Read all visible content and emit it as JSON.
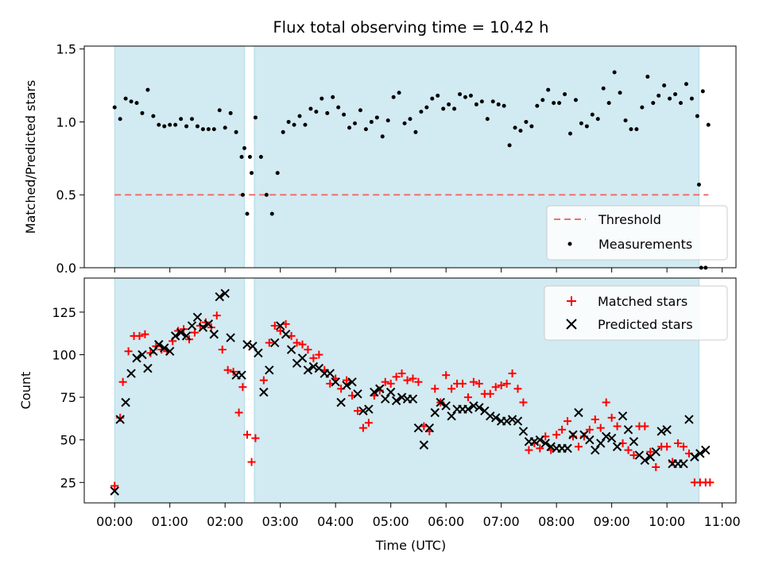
{
  "title": "Flux total observing time = 10.42 h",
  "colors": {
    "span": "#add8e6",
    "threshold": "#ef6f6f",
    "measurement": "#000000",
    "matched": "#ff0000",
    "predicted": "#000000"
  },
  "chart_data": [
    {
      "type": "scatter",
      "ylabel": "Matched/Predicted stars",
      "xlim": [
        -0.55,
        11.25
      ],
      "ylim": [
        0,
        1.52
      ],
      "yticks": [
        0.0,
        0.5,
        1.0,
        1.5
      ],
      "ytick_labels": [
        "0.0",
        "0.5",
        "1.0",
        "1.5"
      ],
      "shaded_ranges": [
        [
          0.0,
          2.35
        ],
        [
          2.53,
          10.58
        ]
      ],
      "threshold": {
        "name": "Threshold",
        "value": 0.5,
        "x_range": [
          0.0,
          10.75
        ]
      },
      "legend": {
        "placement": "lower right",
        "entries": [
          "Threshold",
          "Measurements"
        ]
      },
      "series": [
        {
          "name": "Measurements",
          "x": [
            0.0,
            0.1,
            0.2,
            0.3,
            0.4,
            0.5,
            0.6,
            0.7,
            0.8,
            0.9,
            1.0,
            1.1,
            1.2,
            1.3,
            1.4,
            1.5,
            1.6,
            1.7,
            1.8,
            1.9,
            2.0,
            2.1,
            2.2,
            2.3,
            2.35,
            2.45,
            2.55,
            2.65,
            2.75,
            2.85,
            2.95,
            3.05,
            3.15,
            3.25,
            3.35,
            3.45,
            3.55,
            3.65,
            3.75,
            3.85,
            3.95,
            4.05,
            4.15,
            4.25,
            4.35,
            4.45,
            4.55,
            4.65,
            4.75,
            4.85,
            4.95,
            5.05,
            5.15,
            5.25,
            5.35,
            5.45,
            5.55,
            5.65,
            5.75,
            5.85,
            5.95,
            6.05,
            6.15,
            6.25,
            6.35,
            6.45,
            6.55,
            6.65,
            6.75,
            6.85,
            6.95,
            7.05,
            7.15,
            7.25,
            7.35,
            7.45,
            7.55,
            7.65,
            7.75,
            7.85,
            7.95,
            8.05,
            8.15,
            8.25,
            8.35,
            8.45,
            8.55,
            8.65,
            8.75,
            8.85,
            8.95,
            9.05,
            9.15,
            9.25,
            9.35,
            9.45,
            9.55,
            9.65,
            9.75,
            9.85,
            9.95,
            10.05,
            10.15,
            10.25,
            10.35,
            10.45,
            10.55,
            10.65,
            10.75
          ],
          "y": [
            1.1,
            1.02,
            1.16,
            1.14,
            1.13,
            1.06,
            1.22,
            1.04,
            0.98,
            0.97,
            0.98,
            0.98,
            1.02,
            0.97,
            1.02,
            0.97,
            0.95,
            0.95,
            0.95,
            1.08,
            0.96,
            1.06,
            0.93,
            0.76,
            0.82,
            0.76,
            1.03,
            0.76,
            0.5,
            0.37,
            0.65,
            0.93,
            1.0,
            0.98,
            1.04,
            0.98,
            1.09,
            1.07,
            1.16,
            1.06,
            1.17,
            1.1,
            1.05,
            0.96,
            0.99,
            1.08,
            0.95,
            1.0,
            1.03,
            0.9,
            1.01,
            1.17,
            1.2,
            0.99,
            1.02,
            0.93,
            1.07,
            1.1,
            1.16,
            1.18,
            1.09,
            1.12,
            1.09,
            1.19,
            1.17,
            1.18,
            1.12,
            1.14,
            1.02,
            1.14,
            1.12,
            1.11,
            0.84,
            0.96,
            0.94,
            1.0,
            0.97,
            1.11,
            1.15,
            1.22,
            1.13,
            1.13,
            1.19,
            0.92,
            1.15,
            0.99,
            0.97,
            1.05,
            1.02,
            1.23,
            1.13,
            1.34,
            1.2,
            1.01,
            0.95,
            0.95,
            1.1,
            1.31,
            1.13,
            1.18,
            1.25,
            1.16,
            1.19,
            1.13,
            1.26,
            1.16,
            1.04,
            1.21,
            0.98
          ],
          "gap_points": {
            "x": [
              2.32,
              2.4,
              2.48,
              10.58,
              10.62,
              10.7
            ],
            "y": [
              0.5,
              0.37,
              0.65,
              0.57,
              0.0,
              0.0
            ]
          }
        }
      ]
    },
    {
      "type": "scatter",
      "xlabel": "Time (UTC)",
      "ylabel": "Count",
      "xlim": [
        -0.55,
        11.25
      ],
      "ylim": [
        13,
        145
      ],
      "xticks": [
        0,
        1,
        2,
        3,
        4,
        5,
        6,
        7,
        8,
        9,
        10,
        11
      ],
      "xtick_labels": [
        "00:00",
        "01:00",
        "02:00",
        "03:00",
        "04:00",
        "05:00",
        "06:00",
        "07:00",
        "08:00",
        "09:00",
        "10:00",
        "11:00"
      ],
      "yticks": [
        25,
        50,
        75,
        100,
        125
      ],
      "ytick_labels": [
        "25",
        "50",
        "75",
        "100",
        "125"
      ],
      "shaded_ranges": [
        [
          0.0,
          2.35
        ],
        [
          2.53,
          10.58
        ]
      ],
      "legend": {
        "placement": "upper right",
        "entries": [
          "Matched stars",
          "Predicted stars"
        ]
      },
      "series": [
        {
          "name": "Matched stars",
          "x": [
            0.0,
            0.1,
            0.15,
            0.25,
            0.35,
            0.45,
            0.55,
            0.65,
            0.75,
            0.85,
            0.95,
            1.05,
            1.15,
            1.25,
            1.35,
            1.45,
            1.55,
            1.65,
            1.75,
            1.85,
            1.95,
            2.05,
            2.15,
            2.25,
            2.32,
            2.4,
            2.48,
            2.55,
            2.7,
            2.8,
            2.9,
            3.0,
            3.1,
            3.2,
            3.3,
            3.4,
            3.5,
            3.6,
            3.7,
            3.8,
            3.9,
            4.0,
            4.1,
            4.2,
            4.3,
            4.4,
            4.5,
            4.6,
            4.7,
            4.8,
            4.9,
            5.0,
            5.1,
            5.2,
            5.3,
            5.4,
            5.5,
            5.6,
            5.7,
            5.8,
            5.9,
            6.0,
            6.1,
            6.2,
            6.3,
            6.4,
            6.5,
            6.6,
            6.7,
            6.8,
            6.9,
            7.0,
            7.1,
            7.2,
            7.3,
            7.4,
            7.5,
            7.6,
            7.7,
            7.8,
            7.9,
            8.0,
            8.1,
            8.2,
            8.3,
            8.4,
            8.5,
            8.6,
            8.7,
            8.8,
            8.9,
            9.0,
            9.1,
            9.2,
            9.3,
            9.4,
            9.5,
            9.6,
            9.7,
            9.8,
            9.9,
            10.0,
            10.1,
            10.2,
            10.3,
            10.4,
            10.5,
            10.6,
            10.7,
            10.78
          ],
          "y": [
            23,
            63,
            84,
            102,
            111,
            111,
            112,
            101,
            105,
            103,
            102,
            108,
            114,
            115,
            109,
            113,
            117,
            119,
            116,
            123,
            103,
            91,
            90,
            66,
            81,
            53,
            37,
            51,
            85,
            107,
            117,
            114,
            118,
            111,
            107,
            106,
            103,
            98,
            100,
            91,
            83,
            86,
            80,
            85,
            76,
            67,
            57,
            60,
            76,
            79,
            84,
            83,
            87,
            89,
            85,
            86,
            84,
            58,
            55,
            80,
            72,
            88,
            80,
            83,
            83,
            75,
            84,
            83,
            77,
            77,
            81,
            82,
            83,
            89,
            80,
            72,
            44,
            48,
            45,
            52,
            44,
            53,
            56,
            61,
            52,
            46,
            52,
            56,
            62,
            57,
            72,
            63,
            58,
            48,
            44,
            41,
            58,
            58,
            43,
            34,
            46,
            46,
            37,
            48,
            46,
            42,
            25,
            25,
            25,
            25
          ],
          "marker": "+"
        },
        {
          "name": "Predicted stars",
          "x": [
            0.0,
            0.1,
            0.2,
            0.3,
            0.4,
            0.5,
            0.6,
            0.7,
            0.8,
            0.9,
            1.0,
            1.1,
            1.2,
            1.3,
            1.4,
            1.5,
            1.6,
            1.7,
            1.8,
            1.9,
            2.0,
            2.1,
            2.2,
            2.3,
            2.4,
            2.5,
            2.6,
            2.7,
            2.8,
            2.9,
            3.0,
            3.1,
            3.2,
            3.3,
            3.4,
            3.5,
            3.6,
            3.7,
            3.8,
            3.9,
            4.0,
            4.1,
            4.2,
            4.3,
            4.4,
            4.5,
            4.6,
            4.7,
            4.8,
            4.9,
            5.0,
            5.1,
            5.2,
            5.3,
            5.4,
            5.5,
            5.6,
            5.7,
            5.8,
            5.9,
            6.0,
            6.1,
            6.2,
            6.3,
            6.4,
            6.5,
            6.6,
            6.7,
            6.8,
            6.9,
            7.0,
            7.1,
            7.2,
            7.3,
            7.4,
            7.5,
            7.6,
            7.7,
            7.8,
            7.9,
            8.0,
            8.1,
            8.2,
            8.3,
            8.4,
            8.5,
            8.6,
            8.7,
            8.8,
            8.9,
            9.0,
            9.1,
            9.2,
            9.3,
            9.4,
            9.5,
            9.6,
            9.7,
            9.8,
            9.9,
            10.0,
            10.1,
            10.2,
            10.3,
            10.4,
            10.5,
            10.6,
            10.7
          ],
          "y": [
            20,
            62,
            72,
            89,
            98,
            100,
            92,
            102,
            106,
            104,
            102,
            111,
            113,
            111,
            117,
            122,
            116,
            118,
            112,
            134,
            136,
            110,
            88,
            88,
            106,
            105,
            101,
            78,
            91,
            107,
            117,
            112,
            103,
            95,
            98,
            91,
            93,
            92,
            89,
            89,
            84,
            72,
            82,
            84,
            77,
            67,
            68,
            78,
            80,
            74,
            78,
            73,
            75,
            74,
            74,
            57,
            47,
            57,
            66,
            72,
            70,
            64,
            68,
            68,
            68,
            70,
            69,
            67,
            64,
            63,
            61,
            61,
            62,
            61,
            55,
            49,
            49,
            50,
            48,
            46,
            45,
            45,
            45,
            53,
            66,
            53,
            50,
            44,
            48,
            52,
            51,
            46,
            64,
            56,
            49,
            41,
            38,
            40,
            43,
            55,
            56,
            36,
            36,
            36,
            62,
            40,
            42,
            44
          ],
          "marker": "x"
        }
      ]
    }
  ]
}
